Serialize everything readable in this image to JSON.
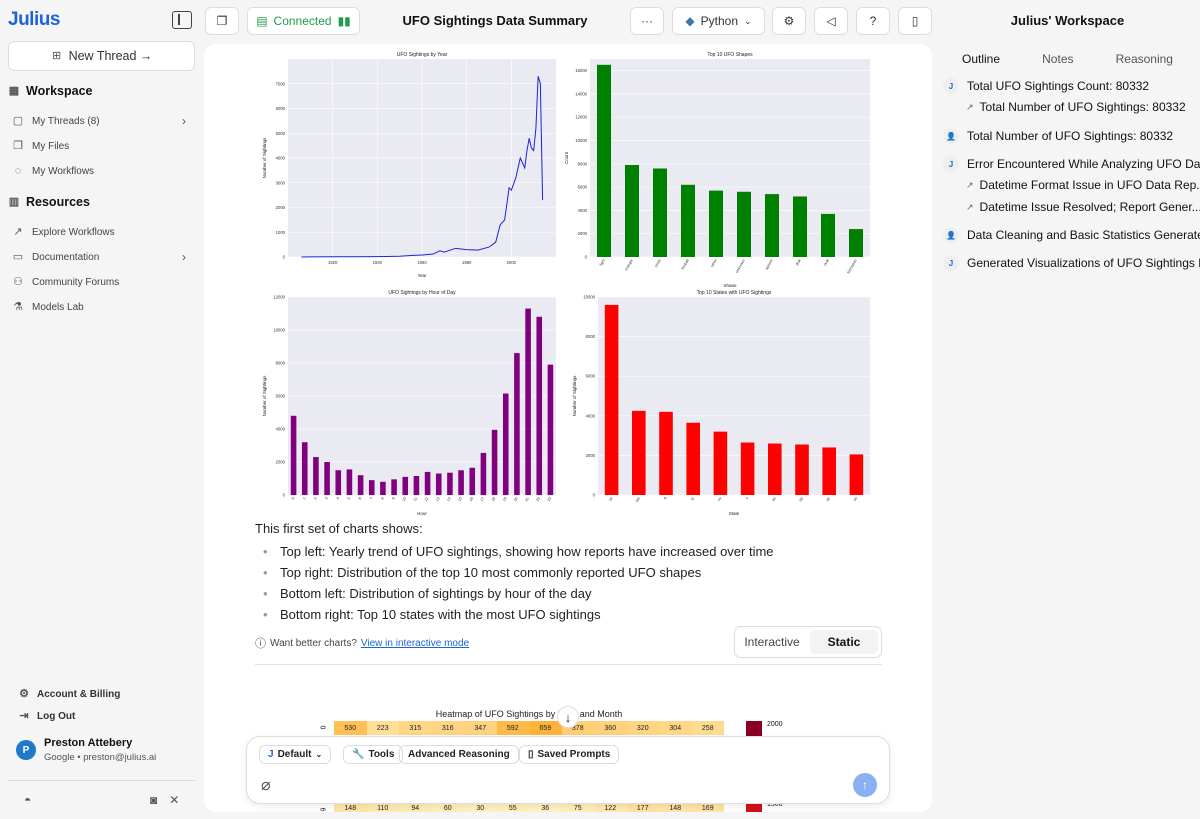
{
  "app": {
    "logo": "Julius",
    "title": "UFO Sightings Data Summary"
  },
  "sidebar": {
    "new_thread": "New Thread →",
    "workspace_label": "Workspace",
    "workspace_items": [
      {
        "label": "My Threads (8)",
        "icon": "chat-icon"
      },
      {
        "label": "My Files",
        "icon": "files-icon"
      },
      {
        "label": "My Workflows",
        "icon": "workflow-icon"
      }
    ],
    "resources_label": "Resources",
    "resources_items": [
      {
        "label": "Explore Workflows",
        "icon": "trend-icon"
      },
      {
        "label": "Documentation",
        "icon": "book-icon"
      },
      {
        "label": "Community Forums",
        "icon": "users-icon"
      },
      {
        "label": "Models Lab",
        "icon": "flask-icon"
      }
    ],
    "account_billing": "Account & Billing",
    "logout": "Log Out",
    "user": {
      "initial": "P",
      "name": "Preston Attebery",
      "sub": "Google • preston@julius.ai"
    }
  },
  "topbar": {
    "connected": "Connected",
    "python": "Python"
  },
  "main": {
    "intro": "This first set of charts shows:",
    "bullets": [
      "Top left: Yearly trend of UFO sightings, showing how reports have increased over time",
      "Top right: Distribution of the top 10 most commonly reported UFO shapes",
      "Bottom left: Distribution of sightings by hour of the day",
      "Bottom right: Top 10 states with the most UFO sightings"
    ],
    "better_text": "Want better charts?",
    "better_link": "View in interactive mode",
    "toggle": {
      "interactive": "Interactive",
      "static": "Static"
    },
    "heatmap_title": "Heatmap of UFO Sightings by Hour and Month",
    "heatmap_row0": [
      530,
      223,
      315,
      316,
      347,
      592,
      659,
      378,
      360,
      320,
      304,
      258
    ],
    "heatmap_row_last": [
      148,
      110,
      94,
      60,
      30,
      55,
      36,
      75,
      122,
      177,
      148,
      169
    ],
    "heatmap_legend_top": "2000",
    "heatmap_legend_bottom": "1500",
    "row0_label": "0",
    "rowlast_label": "6"
  },
  "composer": {
    "model": "Default",
    "tools": "Tools",
    "advanced": "Advanced Reasoning",
    "saved": "Saved Prompts"
  },
  "workspace": {
    "title": "Julius' Workspace",
    "tabs": [
      "Outline",
      "Notes",
      "Reasoning"
    ],
    "items": [
      {
        "badge": "J",
        "text": "Total UFO Sightings Count: 80332",
        "sub": [
          "Total Number of UFO Sightings: 80332"
        ]
      },
      {
        "badge": "👤",
        "text": "Total Number of UFO Sightings: 80332",
        "sub": []
      },
      {
        "badge": "J",
        "text": "Error Encountered While Analyzing UFO Data",
        "sub": [
          "Datetime Format Issue in UFO Data Rep...",
          "Datetime Issue Resolved; Report Gener..."
        ]
      },
      {
        "badge": "👤",
        "text": "Data Cleaning and Basic Statistics Generated",
        "sub": []
      },
      {
        "badge": "J",
        "text": "Generated Visualizations of UFO Sightings D",
        "sub": []
      }
    ]
  },
  "chart_data": [
    {
      "type": "line",
      "title": "UFO Sightings by Year",
      "xlabel": "Year",
      "ylabel": "Number of Sightings",
      "x": [
        1906,
        1910,
        1920,
        1930,
        1940,
        1950,
        1955,
        1960,
        1965,
        1968,
        1970,
        1975,
        1980,
        1985,
        1990,
        1993,
        1995,
        1997,
        1999,
        2000,
        2002,
        2004,
        2005,
        2006,
        2007,
        2008,
        2009,
        2010,
        2011,
        2012,
        2013,
        2014
      ],
      "y": [
        2,
        5,
        8,
        10,
        15,
        30,
        60,
        80,
        120,
        250,
        200,
        350,
        300,
        280,
        400,
        600,
        1300,
        1500,
        2800,
        2700,
        3200,
        4000,
        3800,
        3600,
        4300,
        4800,
        4400,
        4300,
        5200,
        7300,
        7000,
        2300
      ],
      "xticks": [
        1920,
        1940,
        1960,
        1980,
        2000
      ],
      "ylim": [
        0,
        8000
      ],
      "yticks": [
        0,
        1000,
        2000,
        3000,
        4000,
        5000,
        6000,
        7000
      ],
      "color": "#1f22d8"
    },
    {
      "type": "bar",
      "title": "Top 10 UFO Shapes",
      "xlabel": "Shape",
      "ylabel": "Count",
      "categories": [
        "light",
        "triangle",
        "circle",
        "fireball",
        "other",
        "unknown",
        "sphere",
        "disk",
        "oval",
        "formation"
      ],
      "values": [
        16500,
        7900,
        7600,
        6200,
        5700,
        5600,
        5400,
        5200,
        3700,
        2400
      ],
      "ylim": [
        0,
        17000
      ],
      "yticks": [
        0,
        2000,
        4000,
        6000,
        8000,
        10000,
        12000,
        14000,
        16000
      ],
      "color": "#008000"
    },
    {
      "type": "bar",
      "title": "UFO Sightings by Hour of Day",
      "xlabel": "Hour",
      "ylabel": "Number of Sightings",
      "categories": [
        "0",
        "1",
        "2",
        "3",
        "4",
        "5",
        "6",
        "7",
        "8",
        "9",
        "10",
        "11",
        "12",
        "13",
        "14",
        "15",
        "16",
        "17",
        "18",
        "19",
        "20",
        "21",
        "22",
        "23"
      ],
      "values": [
        4800,
        3200,
        2300,
        2000,
        1500,
        1550,
        1200,
        900,
        800,
        950,
        1100,
        1150,
        1400,
        1300,
        1350,
        1500,
        1650,
        2550,
        3950,
        6150,
        8600,
        11300,
        10800,
        7900
      ],
      "ylim": [
        0,
        12000
      ],
      "yticks": [
        0,
        2000,
        4000,
        6000,
        8000,
        10000,
        12000
      ],
      "color": "#800080"
    },
    {
      "type": "bar",
      "title": "Top 10 States with UFO Sightings",
      "xlabel": "State",
      "ylabel": "Number of Sightings",
      "categories": [
        "ca",
        "wa",
        "fl",
        "tx",
        "ny",
        "il",
        "az",
        "pa",
        "oh",
        "mi"
      ],
      "values": [
        9600,
        4250,
        4200,
        3650,
        3200,
        2650,
        2600,
        2550,
        2400,
        2050
      ],
      "ylim": [
        0,
        10000
      ],
      "yticks": [
        0,
        2000,
        4000,
        6000,
        8000,
        10000
      ],
      "color": "#ff0000"
    }
  ]
}
